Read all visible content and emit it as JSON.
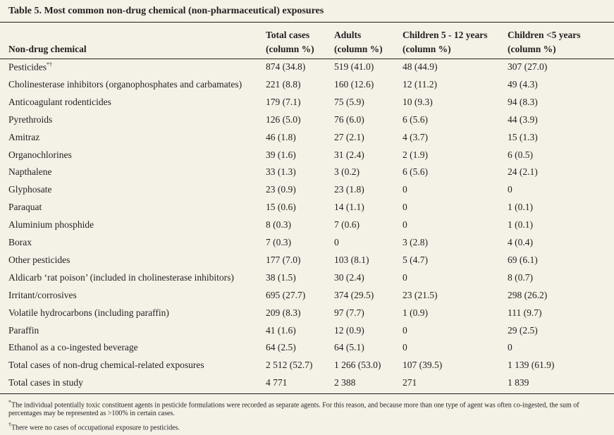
{
  "title": "Table 5. Most common non-drug chemical (non-pharmaceutical) exposures",
  "table": {
    "headers": [
      [
        "Non-drug chemical"
      ],
      [
        "Total cases",
        "(column %)"
      ],
      [
        "Adults",
        "(column %)"
      ],
      [
        "Children 5 - 12 years",
        "(column %)"
      ],
      [
        "Children <5 years",
        "(column %)"
      ]
    ],
    "first_row_marker": "*†",
    "rows": [
      [
        "Pesticides",
        "874 (34.8)",
        "519 (41.0)",
        "48 (44.9)",
        "307 (27.0)"
      ],
      [
        "Cholinesterase inhibitors (organophosphates and carbamates)",
        "221 (8.8)",
        "160 (12.6)",
        "12 (11.2)",
        "49 (4.3)"
      ],
      [
        "Anticoagulant rodenticides",
        "179 (7.1)",
        "75 (5.9)",
        "10 (9.3)",
        "94 (8.3)"
      ],
      [
        "Pyrethroids",
        "126 (5.0)",
        "76 (6.0)",
        "6 (5.6)",
        "44 (3.9)"
      ],
      [
        "Amitraz",
        "46 (1.8)",
        "27 (2.1)",
        "4 (3.7)",
        "15 (1.3)"
      ],
      [
        "Organochlorines",
        "39 (1.6)",
        "31 (2.4)",
        "2 (1.9)",
        "6 (0.5)"
      ],
      [
        "Napthalene",
        "33 (1.3)",
        "3 (0.2)",
        "6 (5.6)",
        "24 (2.1)"
      ],
      [
        "Glyphosate",
        "23 (0.9)",
        "23 (1.8)",
        "0",
        "0"
      ],
      [
        "Paraquat",
        "15 (0.6)",
        "14 (1.1)",
        "0",
        "1 (0.1)"
      ],
      [
        "Aluminium phosphide",
        "8 (0.3)",
        "7 (0.6)",
        "0",
        "1 (0.1)"
      ],
      [
        "Borax",
        "7 (0.3)",
        "0",
        "3 (2.8)",
        "4 (0.4)"
      ],
      [
        "Other pesticides",
        "177 (7.0)",
        "103 (8.1)",
        "5 (4.7)",
        "69 (6.1)"
      ],
      [
        "Aldicarb ‘rat poison’ (included in cholinesterase inhibitors)",
        "38 (1.5)",
        "30 (2.4)",
        "0",
        "8 (0.7)"
      ],
      [
        "Irritant/corrosives",
        "695 (27.7)",
        "374 (29.5)",
        "23 (21.5)",
        "298 (26.2)"
      ],
      [
        "Volatile hydrocarbons (including paraffin)",
        "209 (8.3)",
        "97 (7.7)",
        "1 (0.9)",
        "111 (9.7)"
      ],
      [
        "Paraffin",
        "41 (1.6)",
        "12 (0.9)",
        "0",
        "29 (2.5)"
      ],
      [
        "Ethanol as a co-ingested beverage",
        "64 (2.5)",
        "64 (5.1)",
        "0",
        "0"
      ],
      [
        "Total cases of non-drug chemical-related exposures",
        "2 512 (52.7)",
        "1 266 (53.0)",
        "107 (39.5)",
        "1 139 (61.9)"
      ],
      [
        "Total cases in study",
        "4 771",
        "2 388",
        "271",
        "1 839"
      ]
    ]
  },
  "footnotes": [
    {
      "mark": "*",
      "text": "The individual potentially toxic constituent agents in pesticide formulations were recorded as separate agents. For this reason, and because more than one type of agent was often co-ingested, the sum of percentages may be represented as >100% in certain cases."
    },
    {
      "mark": "†",
      "text": "There were no cases of occupational exposure to pesticides."
    }
  ]
}
